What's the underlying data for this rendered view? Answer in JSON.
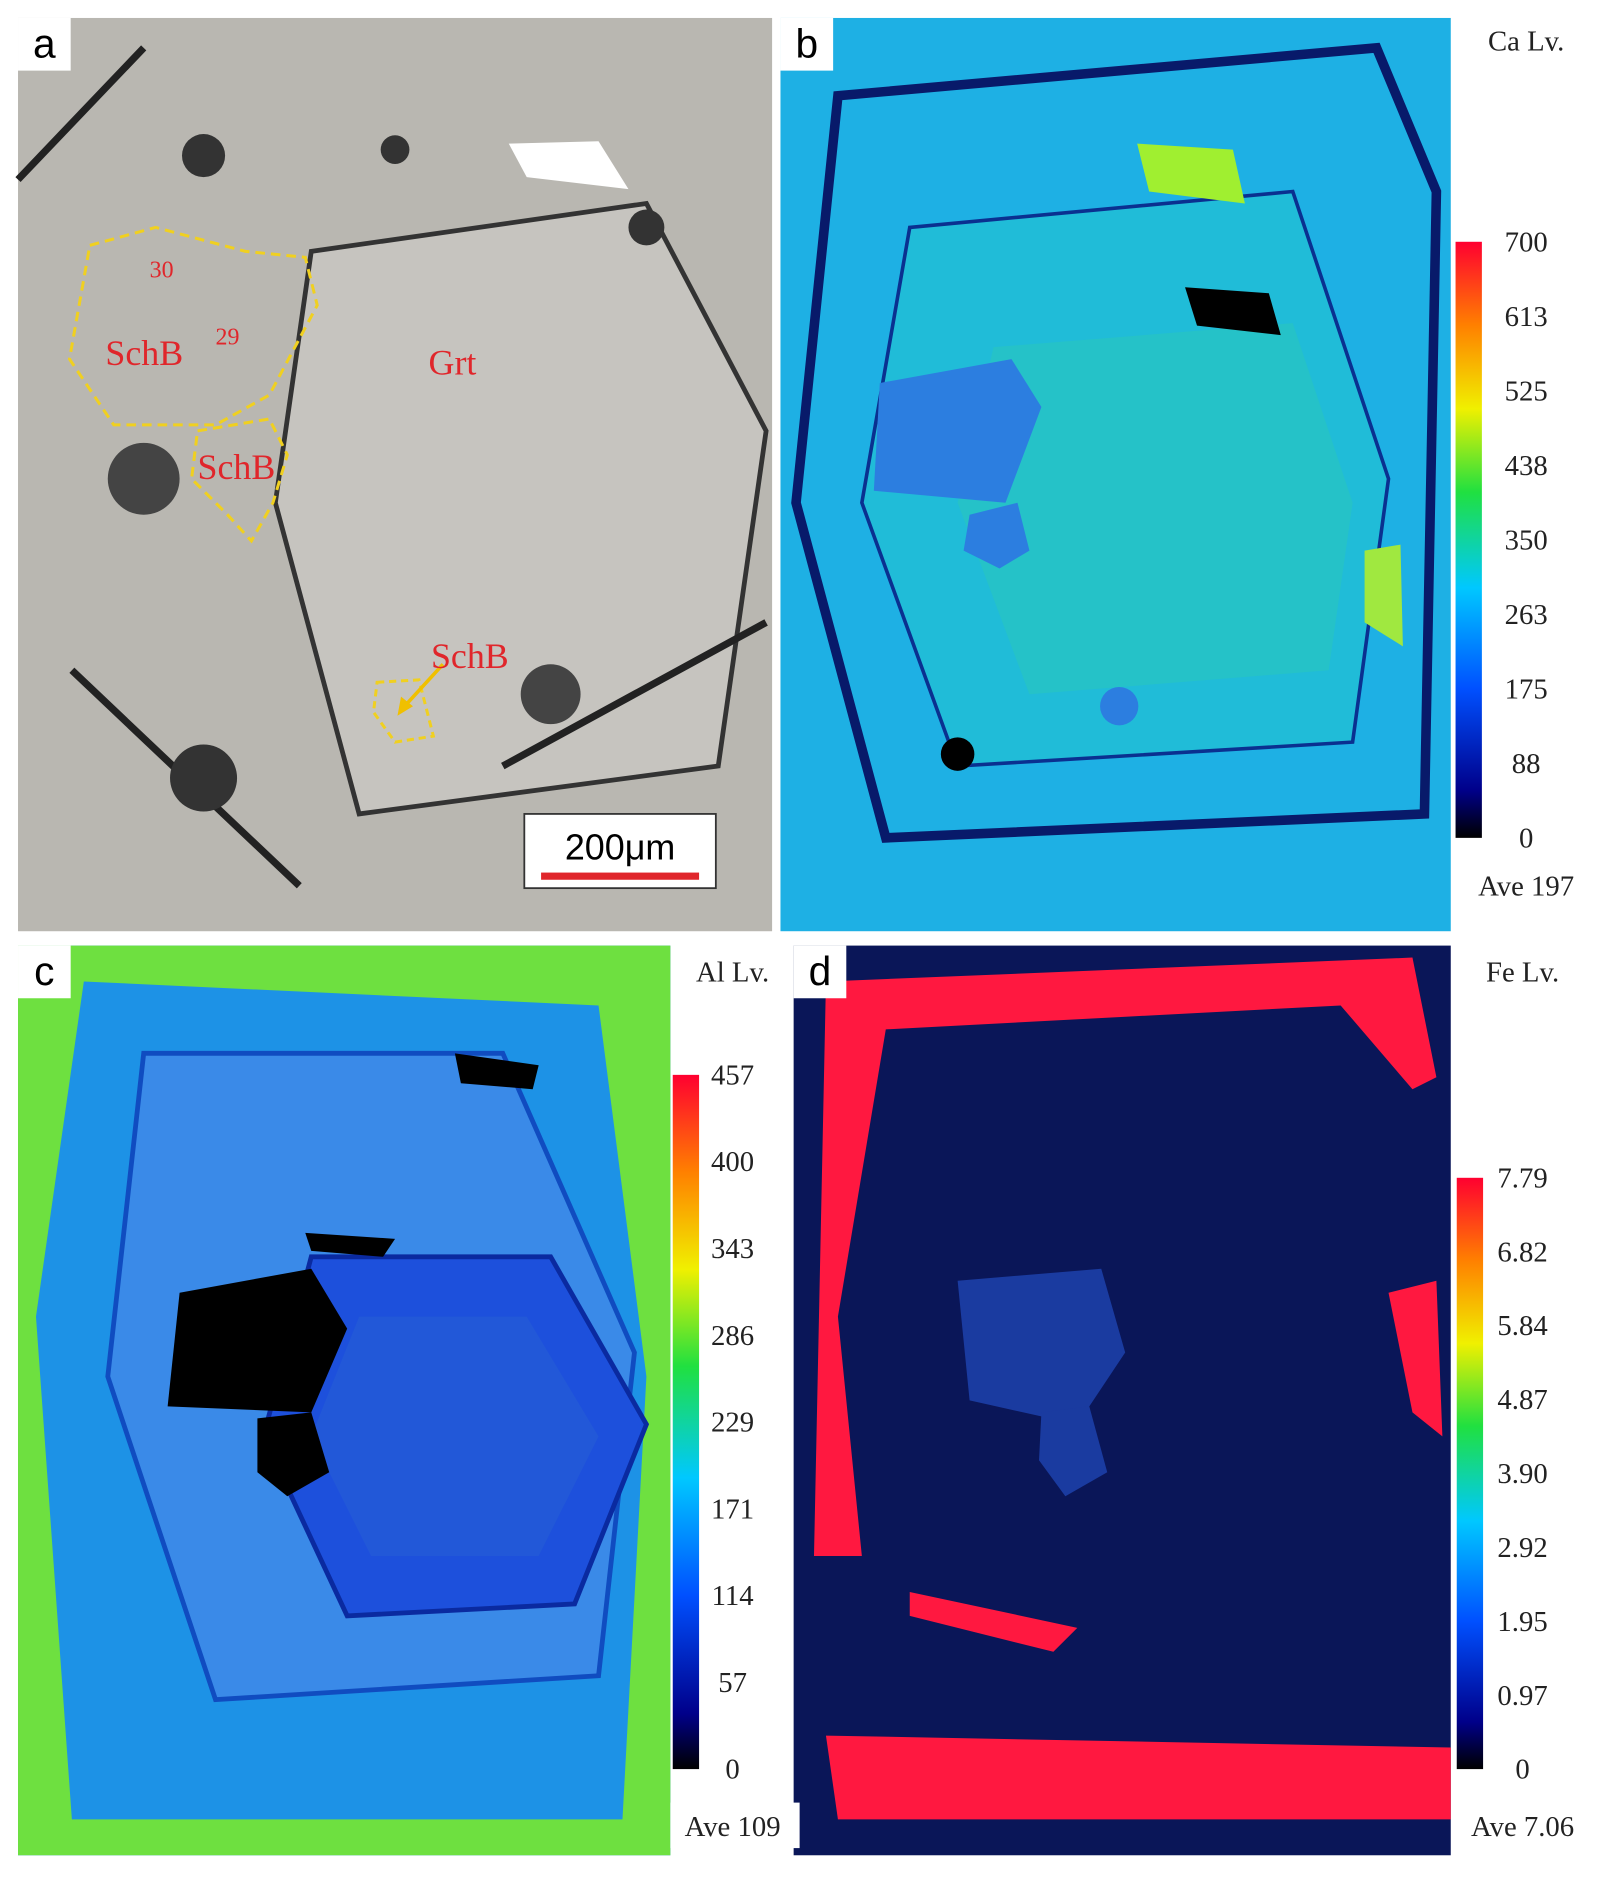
{
  "panels": [
    {
      "label": "a",
      "annotations": {
        "point_30": "30",
        "point_29": "29",
        "schb_1": "SchB",
        "grt": "Grt",
        "schb_2": "SchB",
        "schb_3": "SchB"
      },
      "scale_bar": "200μm"
    },
    {
      "label": "b",
      "colorbar": {
        "title": "Ca Lv.",
        "ticks": [
          "700",
          "613",
          "525",
          "438",
          "350",
          "263",
          "175",
          "88",
          "0"
        ],
        "average": "Ave 197"
      }
    },
    {
      "label": "c",
      "colorbar": {
        "title": "Al Lv.",
        "ticks": [
          "457",
          "400",
          "343",
          "286",
          "229",
          "171",
          "114",
          "57",
          "0"
        ],
        "average": "Ave 109"
      }
    },
    {
      "label": "d",
      "colorbar": {
        "title": "Fe Lv.",
        "ticks": [
          "7.79",
          "6.82",
          "5.84",
          "4.87",
          "3.90",
          "2.92",
          "1.95",
          "0.97",
          "0"
        ],
        "average": "Ave 7.06"
      }
    }
  ]
}
